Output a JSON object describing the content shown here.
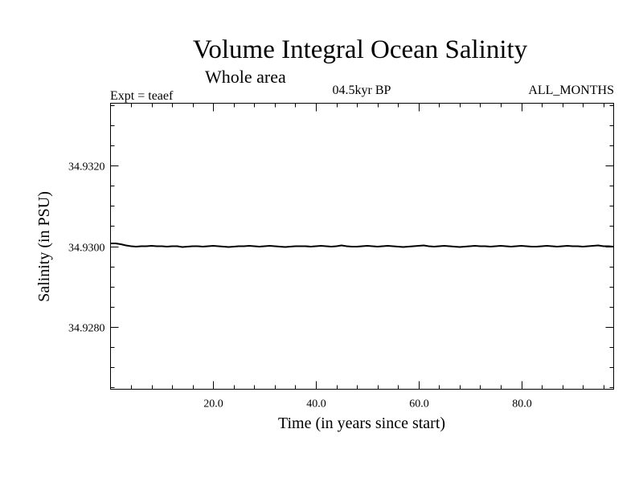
{
  "chart_data": {
    "type": "line",
    "title": "Volume Integral Ocean Salinity",
    "subtitle": "Whole area",
    "experiment": "Expt = teaef",
    "period": "04.5kyr BP",
    "months": "ALL_MONTHS",
    "xlabel": "Time (in years since start)",
    "ylabel": "Salinity (in PSU)",
    "xlim": [
      0,
      98
    ],
    "ylim": [
      34.92645,
      34.93355
    ],
    "xticks": [
      {
        "value": 20,
        "label": "20.0"
      },
      {
        "value": 40,
        "label": "40.0"
      },
      {
        "value": 60,
        "label": "60.0"
      },
      {
        "value": 80,
        "label": "80.0"
      }
    ],
    "yticks": [
      {
        "value": 34.928,
        "label": "34.9280"
      },
      {
        "value": 34.93,
        "label": "34.9300"
      },
      {
        "value": 34.932,
        "label": "34.9320"
      }
    ],
    "x_minor_step": 4,
    "y_minor_step": 0.0005,
    "series": [
      {
        "name": "salinity",
        "x": [
          0,
          1,
          2,
          3,
          4,
          5,
          6,
          7,
          8,
          9,
          10,
          11,
          12,
          13,
          14,
          15,
          16,
          17,
          18,
          19,
          20,
          21,
          22,
          23,
          24,
          25,
          26,
          27,
          28,
          29,
          30,
          31,
          32,
          33,
          34,
          35,
          36,
          37,
          38,
          39,
          40,
          41,
          42,
          43,
          44,
          45,
          46,
          47,
          48,
          49,
          50,
          51,
          52,
          53,
          54,
          55,
          56,
          57,
          58,
          59,
          60,
          61,
          62,
          63,
          64,
          65,
          66,
          67,
          68,
          69,
          70,
          71,
          72,
          73,
          74,
          75,
          76,
          77,
          78,
          79,
          80,
          81,
          82,
          83,
          84,
          85,
          86,
          87,
          88,
          89,
          90,
          91,
          92,
          93,
          94,
          95,
          96,
          97,
          98
        ],
        "values": [
          34.93007,
          34.93007,
          34.93005,
          34.93002,
          34.93,
          34.92999,
          34.93,
          34.93,
          34.93001,
          34.93,
          34.93,
          34.92999,
          34.93,
          34.93,
          34.92998,
          34.92999,
          34.93,
          34.93,
          34.92999,
          34.93,
          34.93001,
          34.93,
          34.92999,
          34.92998,
          34.92999,
          34.93,
          34.93,
          34.93001,
          34.93,
          34.92999,
          34.93,
          34.93001,
          34.93,
          34.92999,
          34.92998,
          34.92999,
          34.93,
          34.93,
          34.93,
          34.92999,
          34.93,
          34.93001,
          34.93,
          34.92999,
          34.93,
          34.93002,
          34.93,
          34.92999,
          34.92999,
          34.93,
          34.93001,
          34.93,
          34.92999,
          34.93,
          34.93001,
          34.93,
          34.92999,
          34.92998,
          34.92999,
          34.93,
          34.93001,
          34.93002,
          34.93,
          34.92999,
          34.93,
          34.93001,
          34.93,
          34.92999,
          34.92998,
          34.92999,
          34.93,
          34.93001,
          34.93,
          34.93,
          34.92999,
          34.93,
          34.93001,
          34.93,
          34.92999,
          34.93,
          34.93001,
          34.93,
          34.92999,
          34.92999,
          34.93,
          34.93001,
          34.93,
          34.92999,
          34.93,
          34.93001,
          34.93,
          34.93,
          34.92999,
          34.93,
          34.93001,
          34.93002,
          34.93,
          34.93,
          34.92999
        ]
      }
    ]
  }
}
